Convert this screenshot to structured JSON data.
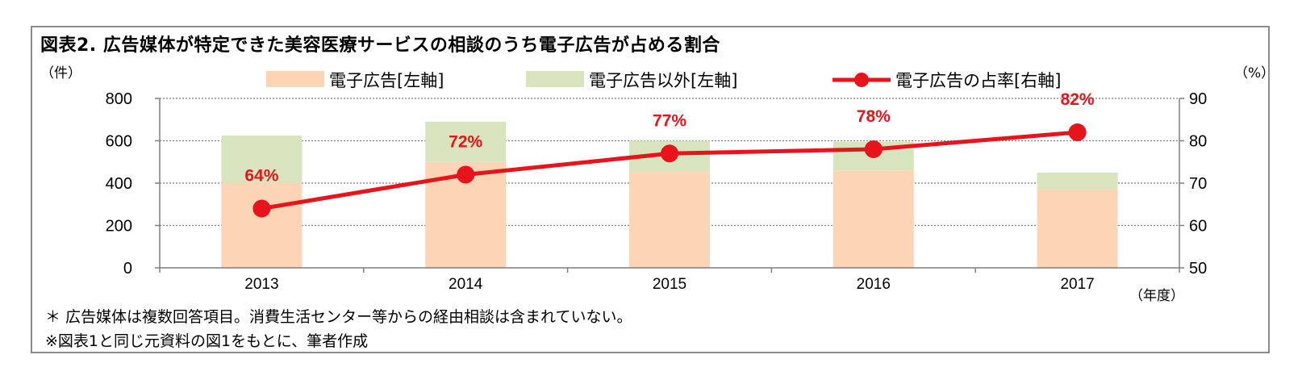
{
  "title": "図表2.  広告媒体が特定できた美容医療サービスの相談のうち電子広告が占める割合",
  "left_unit": "（件）",
  "right_unit": "（%）",
  "x_unit": "（年度）",
  "notes": [
    "＊ 広告媒体は複数回答項目。消費生活センター等からの経由相談は含まれていない。",
    "※図表1と同じ元資料の図1をもとに、筆者作成"
  ],
  "colors": {
    "electronic": "#fbd5b5",
    "other": "#d7e4bd",
    "share_line": "#e8141b",
    "frame": "#8c8c8c"
  },
  "chart_data": {
    "type": "bar",
    "categories": [
      "2013",
      "2014",
      "2015",
      "2016",
      "2017"
    ],
    "series": [
      {
        "name": "電子広告[左軸]",
        "type": "bar",
        "stacked": true,
        "axis": "left",
        "values": [
          400,
          500,
          455,
          460,
          370
        ]
      },
      {
        "name": "電子広告以外[左軸]",
        "type": "bar",
        "stacked": true,
        "axis": "left",
        "values": [
          225,
          190,
          145,
          135,
          80
        ]
      },
      {
        "name": "電子広告の占率[右軸]",
        "type": "line",
        "axis": "right",
        "values": [
          64,
          72,
          77,
          78,
          82
        ],
        "data_labels": [
          "64%",
          "72%",
          "77%",
          "78%",
          "82%"
        ]
      }
    ],
    "left_axis": {
      "ylim": [
        0,
        800
      ],
      "ticks": [
        "0",
        "200",
        "400",
        "600",
        "800"
      ]
    },
    "right_axis": {
      "ylim": [
        50,
        90
      ],
      "ticks": [
        "50",
        "60",
        "70",
        "80",
        "90"
      ]
    },
    "grid": true,
    "legend_position": "top"
  }
}
